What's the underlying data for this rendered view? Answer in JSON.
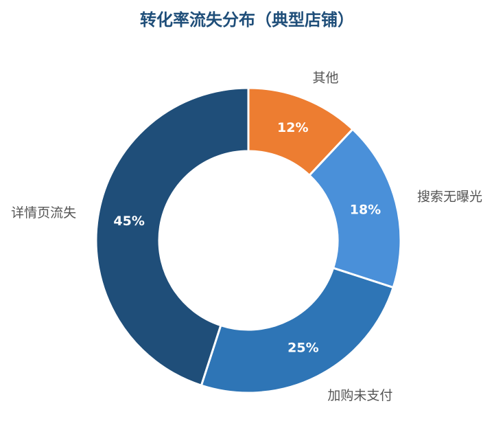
{
  "chart_data": {
    "type": "donut",
    "title": "转化率流失分布（典型店铺）",
    "categories": [
      "其他",
      "搜索无曝光",
      "加购未支付",
      "详情页流失"
    ],
    "values": [
      12,
      18,
      25,
      45
    ],
    "value_labels": [
      "12%",
      "18%",
      "25%",
      "45%"
    ],
    "colors": [
      "#ed7d31",
      "#4a90d9",
      "#2e75b6",
      "#1f4e79"
    ]
  }
}
